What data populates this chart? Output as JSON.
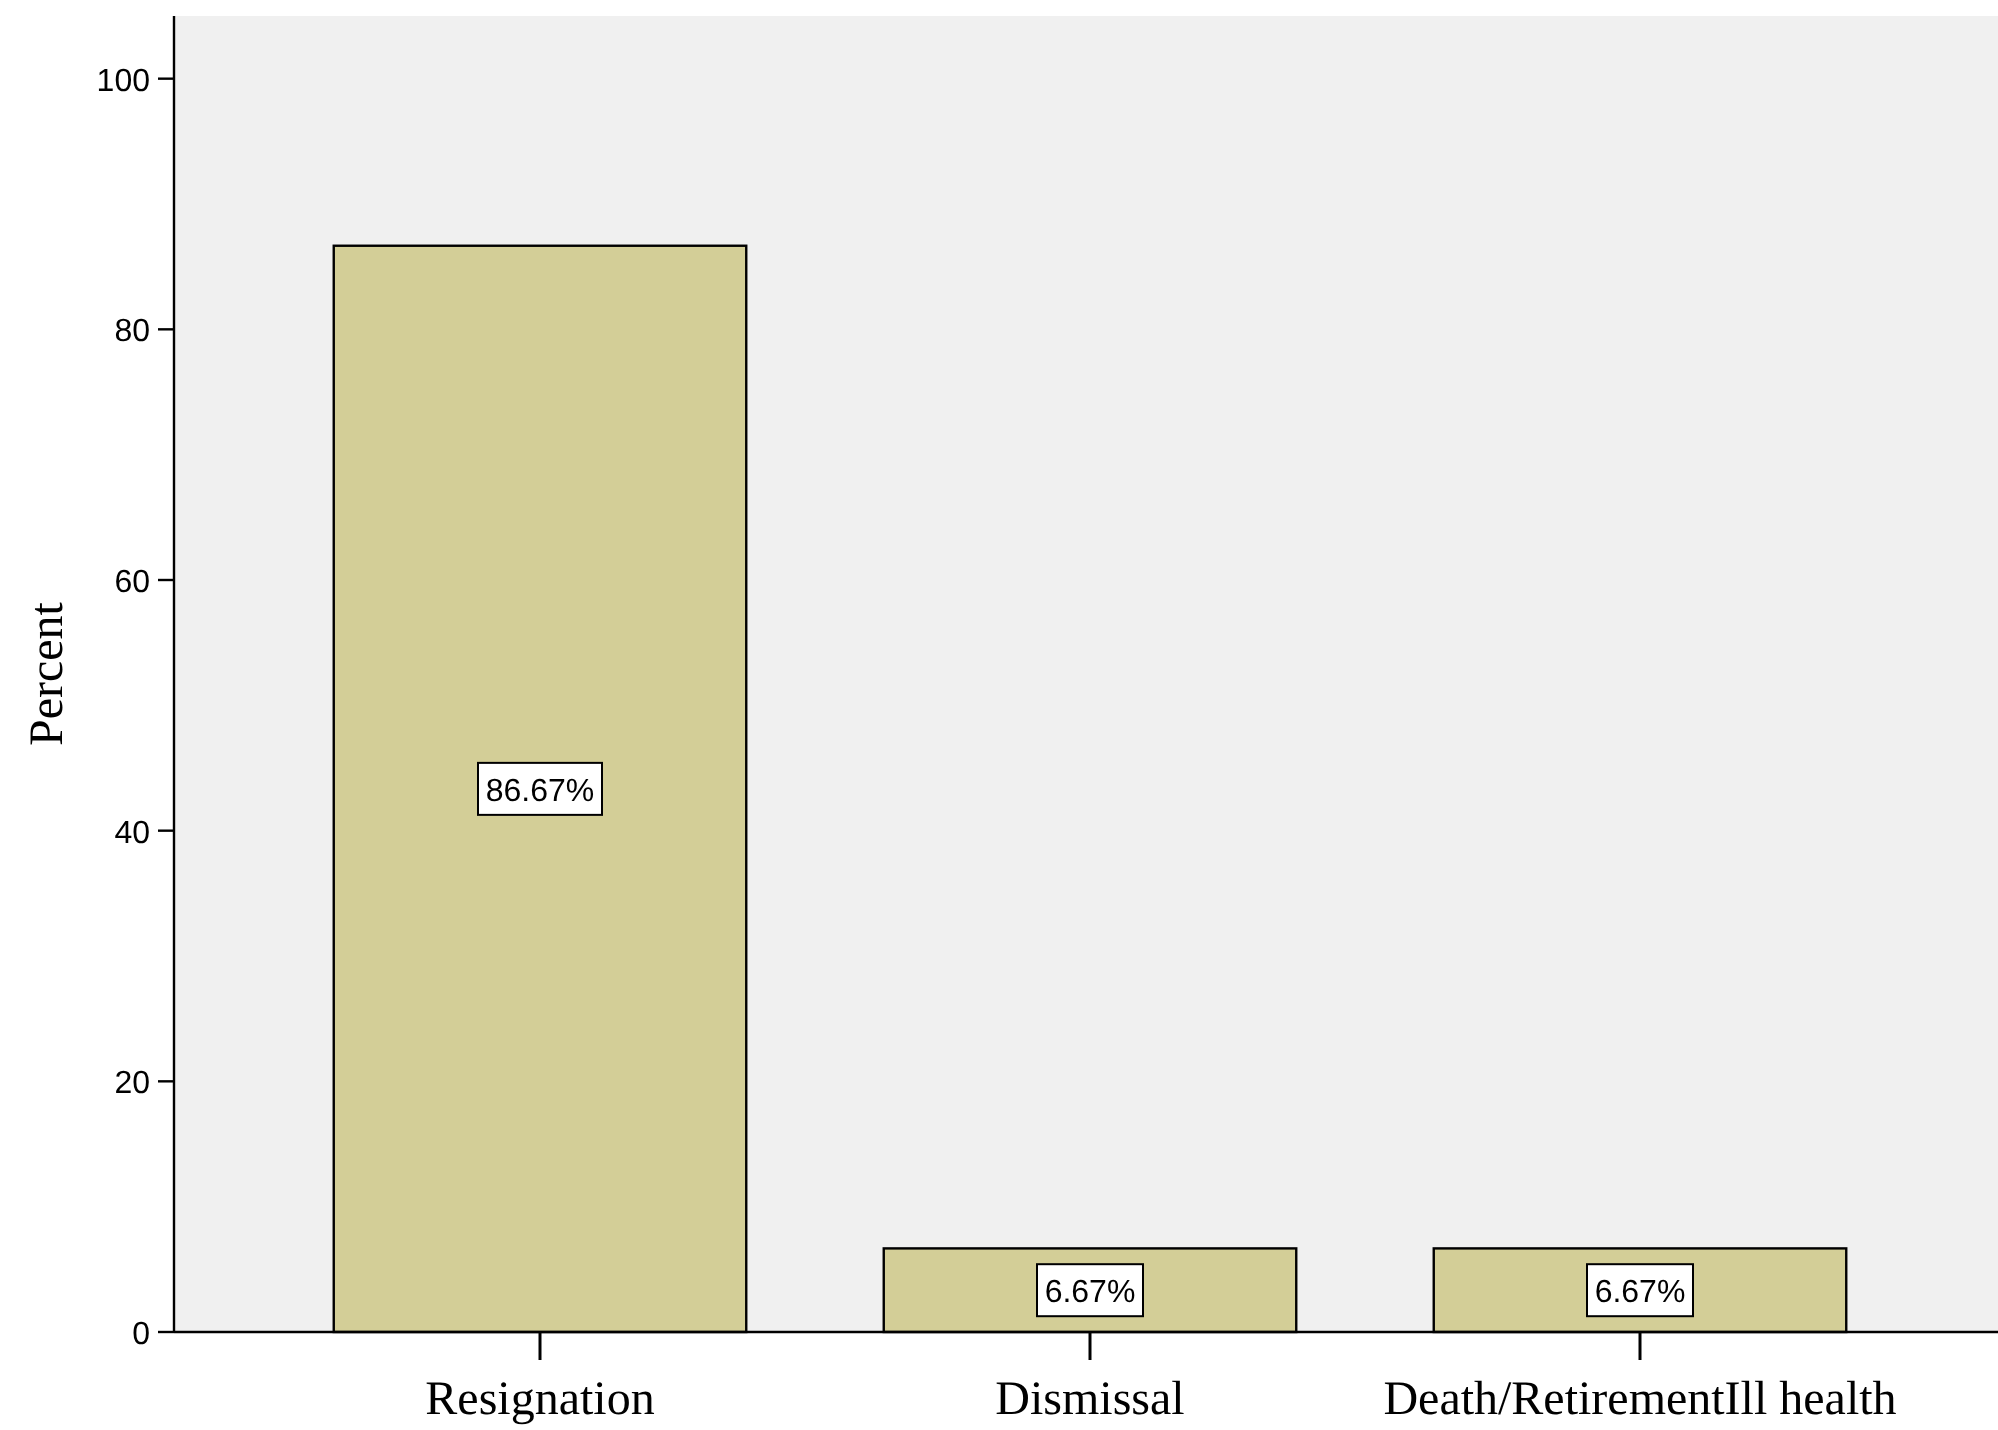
{
  "chart_data": {
    "type": "bar",
    "ylabel": "Percent",
    "categories": [
      "Resignation",
      "Dismissal",
      "Death/RetirementIll health"
    ],
    "values": [
      86.67,
      6.67,
      6.67
    ],
    "value_labels": [
      "86.67%",
      "6.67%",
      "6.67%"
    ],
    "color": "#d3ce97",
    "ylim": [
      0,
      105
    ],
    "yticks": [
      0,
      20,
      40,
      60,
      80,
      100
    ],
    "grid": false
  }
}
